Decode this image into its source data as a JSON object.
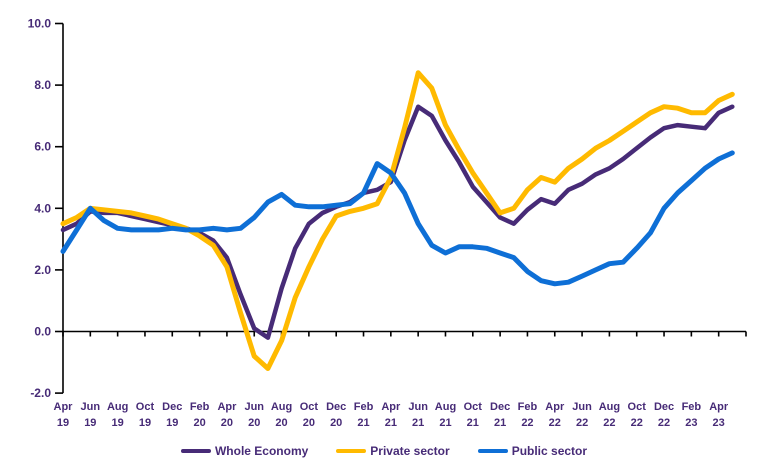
{
  "chart_data": {
    "type": "line",
    "title": "",
    "xlabel": "",
    "ylabel": "",
    "ylim": [
      -2.0,
      10.0
    ],
    "grid": false,
    "legend_position": "bottom",
    "axis_line_color": "#000000",
    "label_color": "#472B77",
    "y_tick_labels": [
      "10.0",
      "8.0",
      "6.0",
      "4.0",
      "2.0",
      "0.0",
      "-2.0"
    ],
    "x_tick_labels": [
      "Apr 19",
      "Jun 19",
      "Aug 19",
      "Oct 19",
      "Dec 19",
      "Feb 20",
      "Apr 20",
      "Jun 20",
      "Aug 20",
      "Oct 20",
      "Dec 20",
      "Feb 21",
      "Apr 21",
      "Jun 21",
      "Aug 21",
      "Oct 21",
      "Dec 21",
      "Feb 22",
      "Apr 22",
      "Jun 22",
      "Aug 22",
      "Oct 22",
      "Dec 22",
      "Feb 23",
      "Apr 23"
    ],
    "x_monthly": [
      "Apr 19",
      "May 19",
      "Jun 19",
      "Jul 19",
      "Aug 19",
      "Sep 19",
      "Oct 19",
      "Nov 19",
      "Dec 19",
      "Jan 20",
      "Feb 20",
      "Mar 20",
      "Apr 20",
      "May 20",
      "Jun 20",
      "Jul 20",
      "Aug 20",
      "Sep 20",
      "Oct 20",
      "Nov 20",
      "Dec 20",
      "Jan 21",
      "Feb 21",
      "Mar 21",
      "Apr 21",
      "May 21",
      "Jun 21",
      "Jul 21",
      "Aug 21",
      "Sep 21",
      "Oct 21",
      "Nov 21",
      "Dec 21",
      "Jan 22",
      "Feb 22",
      "Mar 22",
      "Apr 22",
      "May 22",
      "Jun 22",
      "Jul 22",
      "Aug 22",
      "Sep 22",
      "Oct 22",
      "Nov 22",
      "Dec 22",
      "Jan 23",
      "Feb 23",
      "Mar 23",
      "Apr 23",
      "May 23"
    ],
    "series": [
      {
        "name": "Whole Economy",
        "color": "#472B77",
        "stroke_width": 4.5,
        "values": [
          3.3,
          3.5,
          3.9,
          3.85,
          3.85,
          3.75,
          3.65,
          3.55,
          3.45,
          3.35,
          3.2,
          2.95,
          2.4,
          1.2,
          0.1,
          -0.2,
          1.4,
          2.7,
          3.5,
          3.85,
          4.05,
          4.2,
          4.5,
          4.6,
          4.85,
          6.2,
          7.3,
          7.0,
          6.2,
          5.5,
          4.7,
          4.2,
          3.7,
          3.5,
          3.95,
          4.3,
          4.15,
          4.6,
          4.8,
          5.1,
          5.3,
          5.6,
          5.95,
          6.3,
          6.6,
          6.7,
          6.65,
          6.6,
          7.1,
          7.3
        ]
      },
      {
        "name": "Private sector",
        "color": "#FFBA00",
        "stroke_width": 5,
        "values": [
          3.5,
          3.7,
          4.0,
          3.95,
          3.9,
          3.85,
          3.75,
          3.65,
          3.5,
          3.35,
          3.1,
          2.8,
          2.1,
          0.6,
          -0.8,
          -1.2,
          -0.3,
          1.1,
          2.1,
          3.0,
          3.75,
          3.9,
          4.0,
          4.15,
          5.0,
          6.6,
          8.4,
          7.9,
          6.7,
          5.9,
          5.15,
          4.5,
          3.85,
          4.0,
          4.6,
          5.0,
          4.85,
          5.3,
          5.6,
          5.95,
          6.2,
          6.5,
          6.8,
          7.1,
          7.3,
          7.25,
          7.1,
          7.1,
          7.5,
          7.7
        ]
      },
      {
        "name": "Public sector",
        "color": "#0E6FD6",
        "stroke_width": 5,
        "values": [
          2.6,
          3.3,
          4.0,
          3.6,
          3.35,
          3.3,
          3.3,
          3.3,
          3.35,
          3.3,
          3.3,
          3.35,
          3.3,
          3.35,
          3.7,
          4.2,
          4.45,
          4.1,
          4.05,
          4.05,
          4.1,
          4.15,
          4.5,
          5.45,
          5.15,
          4.5,
          3.5,
          2.8,
          2.55,
          2.75,
          2.75,
          2.7,
          2.55,
          2.4,
          1.95,
          1.65,
          1.55,
          1.6,
          1.8,
          2.0,
          2.2,
          2.25,
          2.7,
          3.2,
          4.0,
          4.5,
          4.9,
          5.3,
          5.6,
          5.8
        ]
      }
    ]
  }
}
